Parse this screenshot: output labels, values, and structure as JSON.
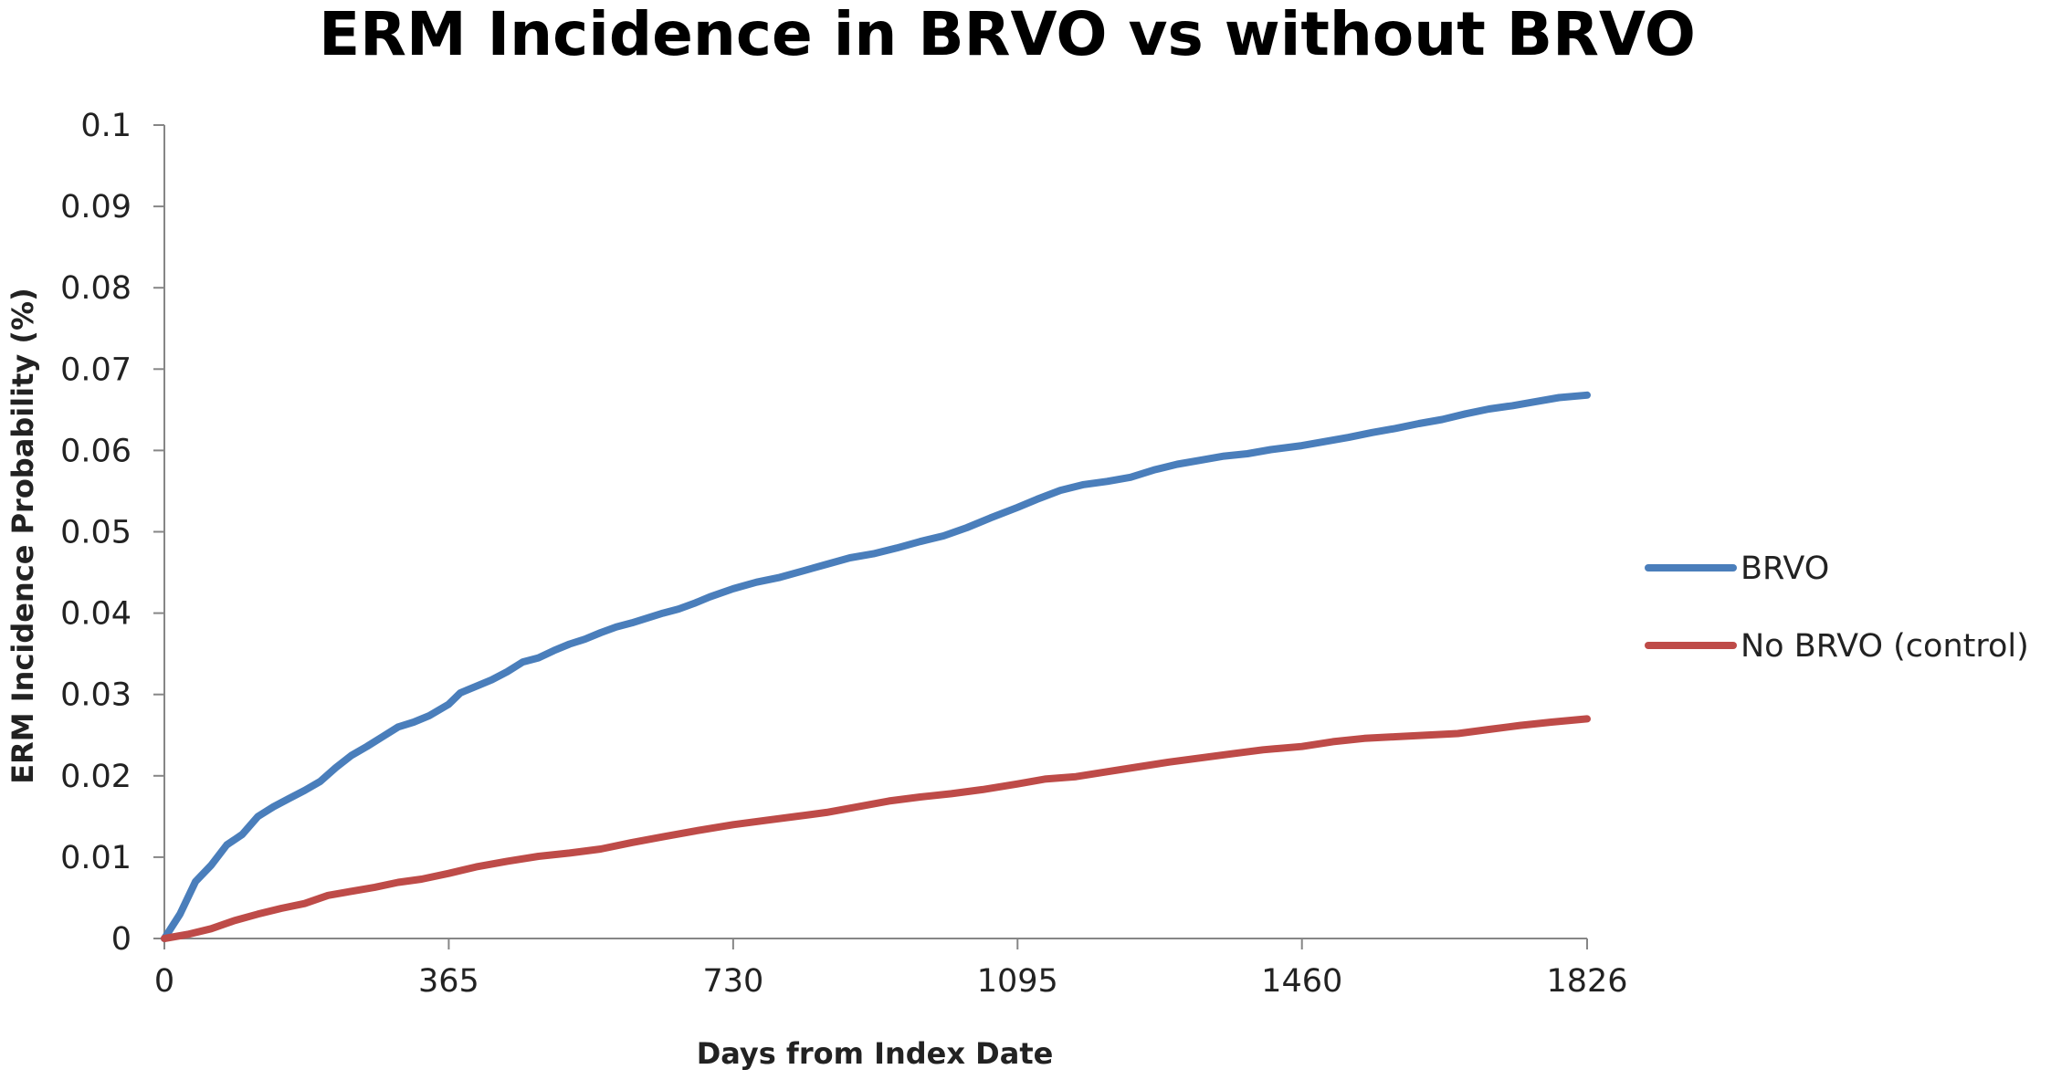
{
  "chart_data": {
    "type": "line",
    "title": "ERM Incidence in BRVO vs without BRVO",
    "xlabel": "Days from Index Date",
    "ylabel": "ERM Incidence Probability (%)",
    "xlim": [
      0,
      1826
    ],
    "ylim": [
      0,
      0.1
    ],
    "x_ticks": [
      "0",
      "365",
      "730",
      "1095",
      "1460",
      "1826"
    ],
    "y_ticks": [
      "0",
      "0.01",
      "0.02",
      "0.03",
      "0.04",
      "0.05",
      "0.06",
      "0.07",
      "0.08",
      "0.09",
      "0.1"
    ],
    "grid": false,
    "legend_position": "right",
    "series": [
      {
        "name": "BRVO",
        "color": "#4a7ebb",
        "points": [
          [
            0,
            0
          ],
          [
            20,
            0.003
          ],
          [
            40,
            0.007
          ],
          [
            60,
            0.009
          ],
          [
            80,
            0.0115
          ],
          [
            100,
            0.0128
          ],
          [
            120,
            0.015
          ],
          [
            140,
            0.0162
          ],
          [
            160,
            0.0172
          ],
          [
            180,
            0.0182
          ],
          [
            200,
            0.0193
          ],
          [
            220,
            0.021
          ],
          [
            240,
            0.0225
          ],
          [
            260,
            0.0236
          ],
          [
            280,
            0.0248
          ],
          [
            300,
            0.026
          ],
          [
            320,
            0.0266
          ],
          [
            340,
            0.0274
          ],
          [
            365,
            0.0288
          ],
          [
            380,
            0.0302
          ],
          [
            400,
            0.031
          ],
          [
            420,
            0.0318
          ],
          [
            440,
            0.0328
          ],
          [
            460,
            0.034
          ],
          [
            480,
            0.0345
          ],
          [
            500,
            0.0354
          ],
          [
            520,
            0.0362
          ],
          [
            540,
            0.0368
          ],
          [
            560,
            0.0376
          ],
          [
            580,
            0.0383
          ],
          [
            600,
            0.0388
          ],
          [
            620,
            0.0394
          ],
          [
            640,
            0.04
          ],
          [
            660,
            0.0405
          ],
          [
            680,
            0.0412
          ],
          [
            700,
            0.042
          ],
          [
            730,
            0.043
          ],
          [
            760,
            0.0438
          ],
          [
            790,
            0.0444
          ],
          [
            820,
            0.0452
          ],
          [
            850,
            0.046
          ],
          [
            880,
            0.0468
          ],
          [
            910,
            0.0473
          ],
          [
            940,
            0.048
          ],
          [
            970,
            0.0488
          ],
          [
            1000,
            0.0495
          ],
          [
            1030,
            0.0505
          ],
          [
            1060,
            0.0517
          ],
          [
            1095,
            0.053
          ],
          [
            1120,
            0.054
          ],
          [
            1150,
            0.0551
          ],
          [
            1180,
            0.0558
          ],
          [
            1210,
            0.0562
          ],
          [
            1240,
            0.0567
          ],
          [
            1270,
            0.0576
          ],
          [
            1300,
            0.0583
          ],
          [
            1330,
            0.0588
          ],
          [
            1360,
            0.0593
          ],
          [
            1390,
            0.0596
          ],
          [
            1420,
            0.0601
          ],
          [
            1460,
            0.0606
          ],
          [
            1490,
            0.0611
          ],
          [
            1520,
            0.0616
          ],
          [
            1550,
            0.0622
          ],
          [
            1580,
            0.0627
          ],
          [
            1610,
            0.0633
          ],
          [
            1640,
            0.0638
          ],
          [
            1670,
            0.0645
          ],
          [
            1700,
            0.0651
          ],
          [
            1730,
            0.0655
          ],
          [
            1760,
            0.066
          ],
          [
            1790,
            0.0665
          ],
          [
            1826,
            0.0668
          ]
        ]
      },
      {
        "name": "No BRVO (control)",
        "color": "#be4b48",
        "points": [
          [
            0,
            0
          ],
          [
            30,
            0.0005
          ],
          [
            60,
            0.0012
          ],
          [
            90,
            0.0022
          ],
          [
            120,
            0.003
          ],
          [
            150,
            0.0037
          ],
          [
            180,
            0.0043
          ],
          [
            210,
            0.0053
          ],
          [
            240,
            0.0058
          ],
          [
            270,
            0.0063
          ],
          [
            300,
            0.0069
          ],
          [
            330,
            0.0073
          ],
          [
            365,
            0.008
          ],
          [
            400,
            0.0088
          ],
          [
            440,
            0.0095
          ],
          [
            480,
            0.0101
          ],
          [
            520,
            0.0105
          ],
          [
            560,
            0.011
          ],
          [
            600,
            0.0118
          ],
          [
            640,
            0.0125
          ],
          [
            680,
            0.0132
          ],
          [
            730,
            0.014
          ],
          [
            770,
            0.0145
          ],
          [
            810,
            0.015
          ],
          [
            850,
            0.0155
          ],
          [
            890,
            0.0162
          ],
          [
            930,
            0.0169
          ],
          [
            970,
            0.0174
          ],
          [
            1010,
            0.0178
          ],
          [
            1050,
            0.0183
          ],
          [
            1095,
            0.019
          ],
          [
            1130,
            0.0196
          ],
          [
            1170,
            0.0199
          ],
          [
            1210,
            0.0205
          ],
          [
            1250,
            0.0211
          ],
          [
            1290,
            0.0217
          ],
          [
            1330,
            0.0222
          ],
          [
            1370,
            0.0227
          ],
          [
            1410,
            0.0232
          ],
          [
            1460,
            0.0236
          ],
          [
            1500,
            0.0242
          ],
          [
            1540,
            0.0246
          ],
          [
            1580,
            0.0248
          ],
          [
            1620,
            0.025
          ],
          [
            1660,
            0.0252
          ],
          [
            1700,
            0.0257
          ],
          [
            1740,
            0.0262
          ],
          [
            1780,
            0.0266
          ],
          [
            1826,
            0.027
          ]
        ]
      }
    ]
  }
}
